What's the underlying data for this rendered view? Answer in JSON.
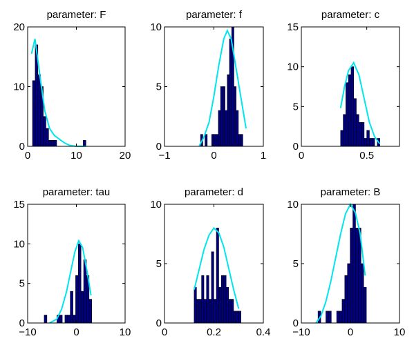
{
  "chart_data": [
    {
      "type": "bar",
      "title": "parameter: F",
      "xlim": [
        0,
        20
      ],
      "ylim": [
        0,
        20
      ],
      "xticks": [
        0,
        10,
        20
      ],
      "yticks": [
        0,
        10,
        20
      ],
      "bin_width": 0.55,
      "bins": [
        [
          1.0,
          11
        ],
        [
          1.55,
          17
        ],
        [
          2.1,
          12
        ],
        [
          2.65,
          10
        ],
        [
          3.2,
          5
        ],
        [
          3.75,
          3
        ],
        [
          4.3,
          1
        ],
        [
          4.85,
          1
        ],
        [
          5.4,
          1
        ],
        [
          11.4,
          1
        ]
      ],
      "fit": [
        [
          0.8,
          15.5
        ],
        [
          1.5,
          18
        ],
        [
          2.5,
          12
        ],
        [
          3.5,
          6
        ],
        [
          4.5,
          3
        ],
        [
          5.5,
          1.8
        ],
        [
          6.5,
          1.2
        ],
        [
          7.5,
          0.6
        ],
        [
          8.5,
          0.2
        ],
        [
          10,
          0
        ],
        [
          12,
          0
        ]
      ],
      "colors": {
        "bar": "#000080",
        "fit": "#00e5ee"
      }
    },
    {
      "type": "bar",
      "title": "parameter: f",
      "xlim": [
        -1,
        1
      ],
      "ylim": [
        0,
        10
      ],
      "xticks": [
        -1,
        0,
        1
      ],
      "yticks": [
        0,
        5,
        10
      ],
      "bin_width": 0.045,
      "bins": [
        [
          -0.27,
          1
        ],
        [
          -0.225,
          0
        ],
        [
          -0.18,
          1
        ],
        [
          -0.135,
          0
        ],
        [
          -0.09,
          0
        ],
        [
          -0.045,
          1
        ],
        [
          0.0,
          1
        ],
        [
          0.045,
          1
        ],
        [
          0.09,
          3
        ],
        [
          0.135,
          5
        ],
        [
          0.18,
          5
        ],
        [
          0.225,
          3
        ],
        [
          0.27,
          6
        ],
        [
          0.315,
          9
        ],
        [
          0.36,
          10
        ],
        [
          0.405,
          5
        ],
        [
          0.45,
          3
        ],
        [
          0.495,
          1
        ],
        [
          0.54,
          1
        ]
      ],
      "fit": [
        [
          -0.3,
          0
        ],
        [
          -0.2,
          0.8
        ],
        [
          -0.1,
          2
        ],
        [
          0,
          4.2
        ],
        [
          0.1,
          6.8
        ],
        [
          0.2,
          9
        ],
        [
          0.27,
          9.7
        ],
        [
          0.35,
          9
        ],
        [
          0.45,
          6.5
        ],
        [
          0.55,
          4
        ],
        [
          0.65,
          1.5
        ]
      ],
      "colors": {
        "bar": "#000080",
        "fit": "#00e5ee"
      }
    },
    {
      "type": "bar",
      "title": "parameter: c",
      "xlim": [
        0,
        0.75
      ],
      "ylim": [
        0,
        15
      ],
      "xticks": [
        0,
        0.5
      ],
      "yticks": [
        0,
        5,
        10,
        15
      ],
      "bin_width": 0.02,
      "bins": [
        [
          0.3,
          2
        ],
        [
          0.32,
          4
        ],
        [
          0.34,
          8
        ],
        [
          0.36,
          9
        ],
        [
          0.38,
          10
        ],
        [
          0.4,
          6
        ],
        [
          0.42,
          4
        ],
        [
          0.44,
          3
        ],
        [
          0.46,
          3
        ],
        [
          0.48,
          1
        ],
        [
          0.5,
          2
        ],
        [
          0.52,
          1
        ],
        [
          0.54,
          1
        ],
        [
          0.58,
          1
        ]
      ],
      "fit": [
        [
          0.3,
          4.8
        ],
        [
          0.33,
          7.5
        ],
        [
          0.36,
          9.5
        ],
        [
          0.4,
          10.5
        ],
        [
          0.44,
          9
        ],
        [
          0.48,
          6
        ],
        [
          0.52,
          3
        ],
        [
          0.56,
          1.2
        ],
        [
          0.6,
          0.3
        ]
      ],
      "colors": {
        "bar": "#000080",
        "fit": "#00e5ee"
      }
    },
    {
      "type": "bar",
      "title": "parameter: tau",
      "xlim": [
        -10,
        10
      ],
      "ylim": [
        0,
        15
      ],
      "xticks": [
        -10,
        0,
        10
      ],
      "yticks": [
        0,
        5,
        10,
        15
      ],
      "bin_width": 0.55,
      "bins": [
        [
          -6.6,
          1
        ],
        [
          -4.0,
          1
        ],
        [
          -3.45,
          1
        ],
        [
          -2.9,
          0
        ],
        [
          -2.35,
          1
        ],
        [
          -1.8,
          1
        ],
        [
          -1.25,
          4
        ],
        [
          -0.7,
          1
        ],
        [
          -0.15,
          6
        ],
        [
          0.4,
          10
        ],
        [
          0.95,
          4
        ],
        [
          1.5,
          8
        ],
        [
          2.05,
          6
        ],
        [
          2.6,
          3
        ]
      ],
      "fit": [
        [
          -5.5,
          0
        ],
        [
          -4,
          0.5
        ],
        [
          -3,
          1.8
        ],
        [
          -2,
          4
        ],
        [
          -1,
          7
        ],
        [
          -0.3,
          9
        ],
        [
          0.5,
          10.4
        ],
        [
          1.3,
          9.5
        ],
        [
          2.2,
          6.5
        ],
        [
          3,
          3.5
        ]
      ],
      "colors": {
        "bar": "#000080",
        "fit": "#00e5ee"
      }
    },
    {
      "type": "bar",
      "title": "parameter: d",
      "xlim": [
        0,
        0.4
      ],
      "ylim": [
        0,
        10
      ],
      "xticks": [
        0,
        0.2,
        0.4
      ],
      "yticks": [
        0,
        5,
        10
      ],
      "bin_width": 0.0095,
      "bins": [
        [
          0.12,
          3
        ],
        [
          0.13,
          2
        ],
        [
          0.14,
          2
        ],
        [
          0.15,
          4
        ],
        [
          0.16,
          2
        ],
        [
          0.17,
          4
        ],
        [
          0.18,
          2
        ],
        [
          0.19,
          6
        ],
        [
          0.2,
          2
        ],
        [
          0.21,
          8
        ],
        [
          0.22,
          3
        ],
        [
          0.23,
          4
        ],
        [
          0.24,
          4
        ],
        [
          0.25,
          3
        ],
        [
          0.26,
          2
        ],
        [
          0.27,
          2
        ],
        [
          0.28,
          1
        ],
        [
          0.29,
          1
        ],
        [
          0.3,
          1
        ]
      ],
      "fit": [
        [
          0.12,
          2.8
        ],
        [
          0.14,
          4.5
        ],
        [
          0.16,
          6.2
        ],
        [
          0.18,
          7.4
        ],
        [
          0.2,
          8
        ],
        [
          0.22,
          7.6
        ],
        [
          0.24,
          6.4
        ],
        [
          0.26,
          4.6
        ],
        [
          0.28,
          2.8
        ],
        [
          0.3,
          1.2
        ]
      ],
      "colors": {
        "bar": "#000080",
        "fit": "#00e5ee"
      }
    },
    {
      "type": "bar",
      "title": "parameter: B",
      "xlim": [
        -10,
        10
      ],
      "ylim": [
        0,
        10
      ],
      "xticks": [
        -10,
        0,
        10
      ],
      "yticks": [
        0,
        5,
        10
      ],
      "bin_width": 0.55,
      "bins": [
        [
          -6.6,
          1
        ],
        [
          -5.0,
          1
        ],
        [
          -4.45,
          1
        ],
        [
          -2.8,
          1
        ],
        [
          -2.25,
          1
        ],
        [
          -1.7,
          2
        ],
        [
          -1.15,
          4
        ],
        [
          -0.6,
          5
        ],
        [
          -0.05,
          8
        ],
        [
          0.5,
          10
        ],
        [
          1.05,
          8
        ],
        [
          1.6,
          8
        ],
        [
          2.15,
          5
        ],
        [
          2.7,
          3
        ]
      ],
      "fit": [
        [
          -7,
          0
        ],
        [
          -6,
          0.6
        ],
        [
          -5,
          1.8
        ],
        [
          -4,
          3.5
        ],
        [
          -3,
          5.5
        ],
        [
          -2,
          7.5
        ],
        [
          -1,
          9.2
        ],
        [
          0,
          10
        ],
        [
          1,
          9.3
        ],
        [
          2,
          7.5
        ],
        [
          3,
          4
        ]
      ],
      "colors": {
        "bar": "#000080",
        "fit": "#00e5ee"
      }
    }
  ]
}
